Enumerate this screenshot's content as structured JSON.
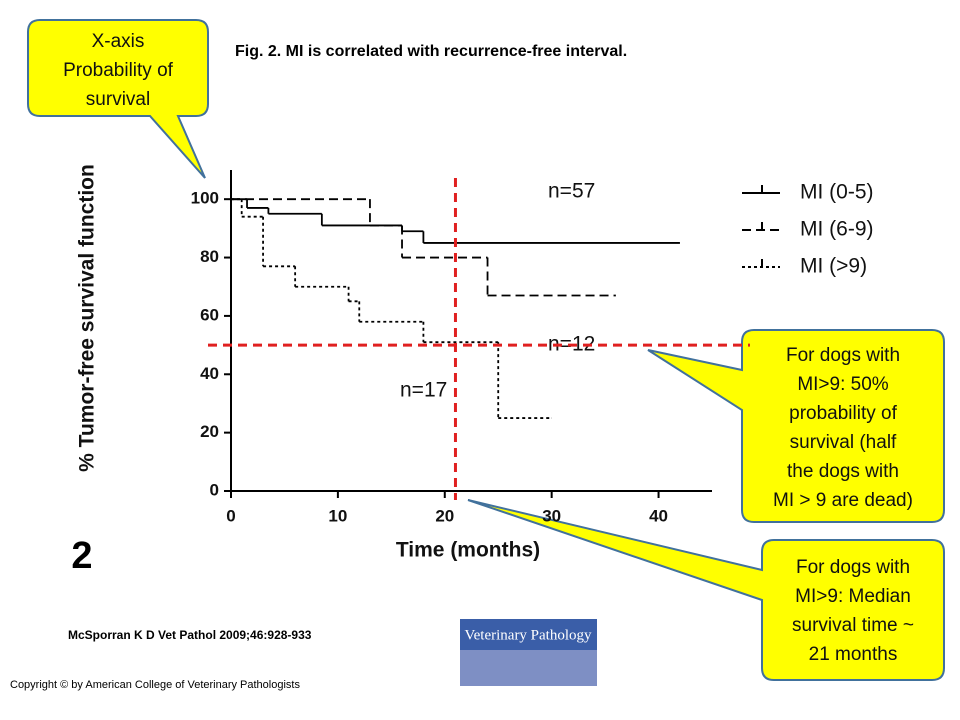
{
  "chart_data": {
    "type": "step",
    "title": "Fig. 2. MI is correlated with recurrence-free interval.",
    "x_label": "Time (months)",
    "y_label": "% Tumor-free survival function",
    "panel_label": "2",
    "xlim": [
      0,
      45
    ],
    "ylim": [
      0,
      110
    ],
    "xticks": [
      0,
      10,
      20,
      30,
      40
    ],
    "yticks": [
      0,
      20,
      40,
      60,
      80,
      100
    ],
    "series": [
      {
        "name": "MI (0-5)",
        "color": "#000000",
        "dash": "solid",
        "x": [
          0,
          1.5,
          3.5,
          8.5,
          16,
          18,
          42
        ],
        "values": [
          100,
          97,
          95,
          91,
          89,
          85,
          85
        ]
      },
      {
        "name": "MI (6-9)",
        "color": "#000000",
        "dash": "dashed",
        "x": [
          0,
          13,
          16,
          24,
          36
        ],
        "values": [
          100,
          91,
          80,
          67,
          67
        ]
      },
      {
        "name": "MI (>9)",
        "color": "#000000",
        "dash": "dotted",
        "x": [
          0,
          1,
          3,
          6,
          11,
          12,
          18,
          25,
          30
        ],
        "values": [
          100,
          94,
          77,
          70,
          65,
          58,
          51,
          25,
          25
        ]
      }
    ],
    "reference_lines": {
      "x": 21,
      "y": 50,
      "color": "#e02020"
    },
    "annotations": [
      "n=57",
      "n=12",
      "n=17"
    ],
    "callouts": [
      [
        "X-axis",
        "Probability of",
        "survival"
      ],
      [
        "For dogs with",
        "MI>9: 50%",
        "probability of",
        "survival (half",
        "the dogs with",
        "MI > 9 are dead)"
      ],
      [
        "For dogs with",
        "MI>9: Median",
        "survival time ~",
        "21 months"
      ]
    ],
    "citation": "McSporran K D Vet Pathol 2009;46:928-933",
    "logo": "Veterinary Pathology",
    "copyright": "Copyright © by American College of Veterinary Pathologists"
  }
}
